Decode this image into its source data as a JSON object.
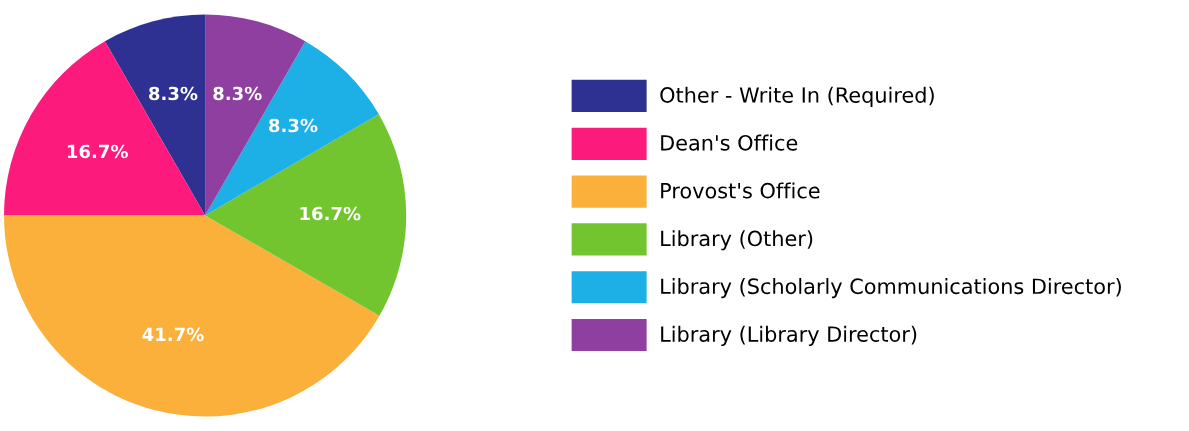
{
  "chart_data": {
    "type": "pie",
    "categories": [
      "Other - Write In (Required)",
      "Dean's Office",
      "Provost's Office",
      "Library (Other)",
      "Library (Scholarly Communications Director)",
      "Library (Library Director)"
    ],
    "values": [
      8.3,
      16.7,
      41.7,
      16.7,
      8.3,
      8.3
    ],
    "value_labels": [
      "8.3%",
      "16.7%",
      "41.7%",
      "16.7%",
      "8.3%",
      "8.3%"
    ],
    "colors": [
      "#2e3192",
      "#fc1a7d",
      "#fbb03b",
      "#72c52e",
      "#1cb0e6",
      "#8e3f9f"
    ],
    "legend": "right"
  }
}
